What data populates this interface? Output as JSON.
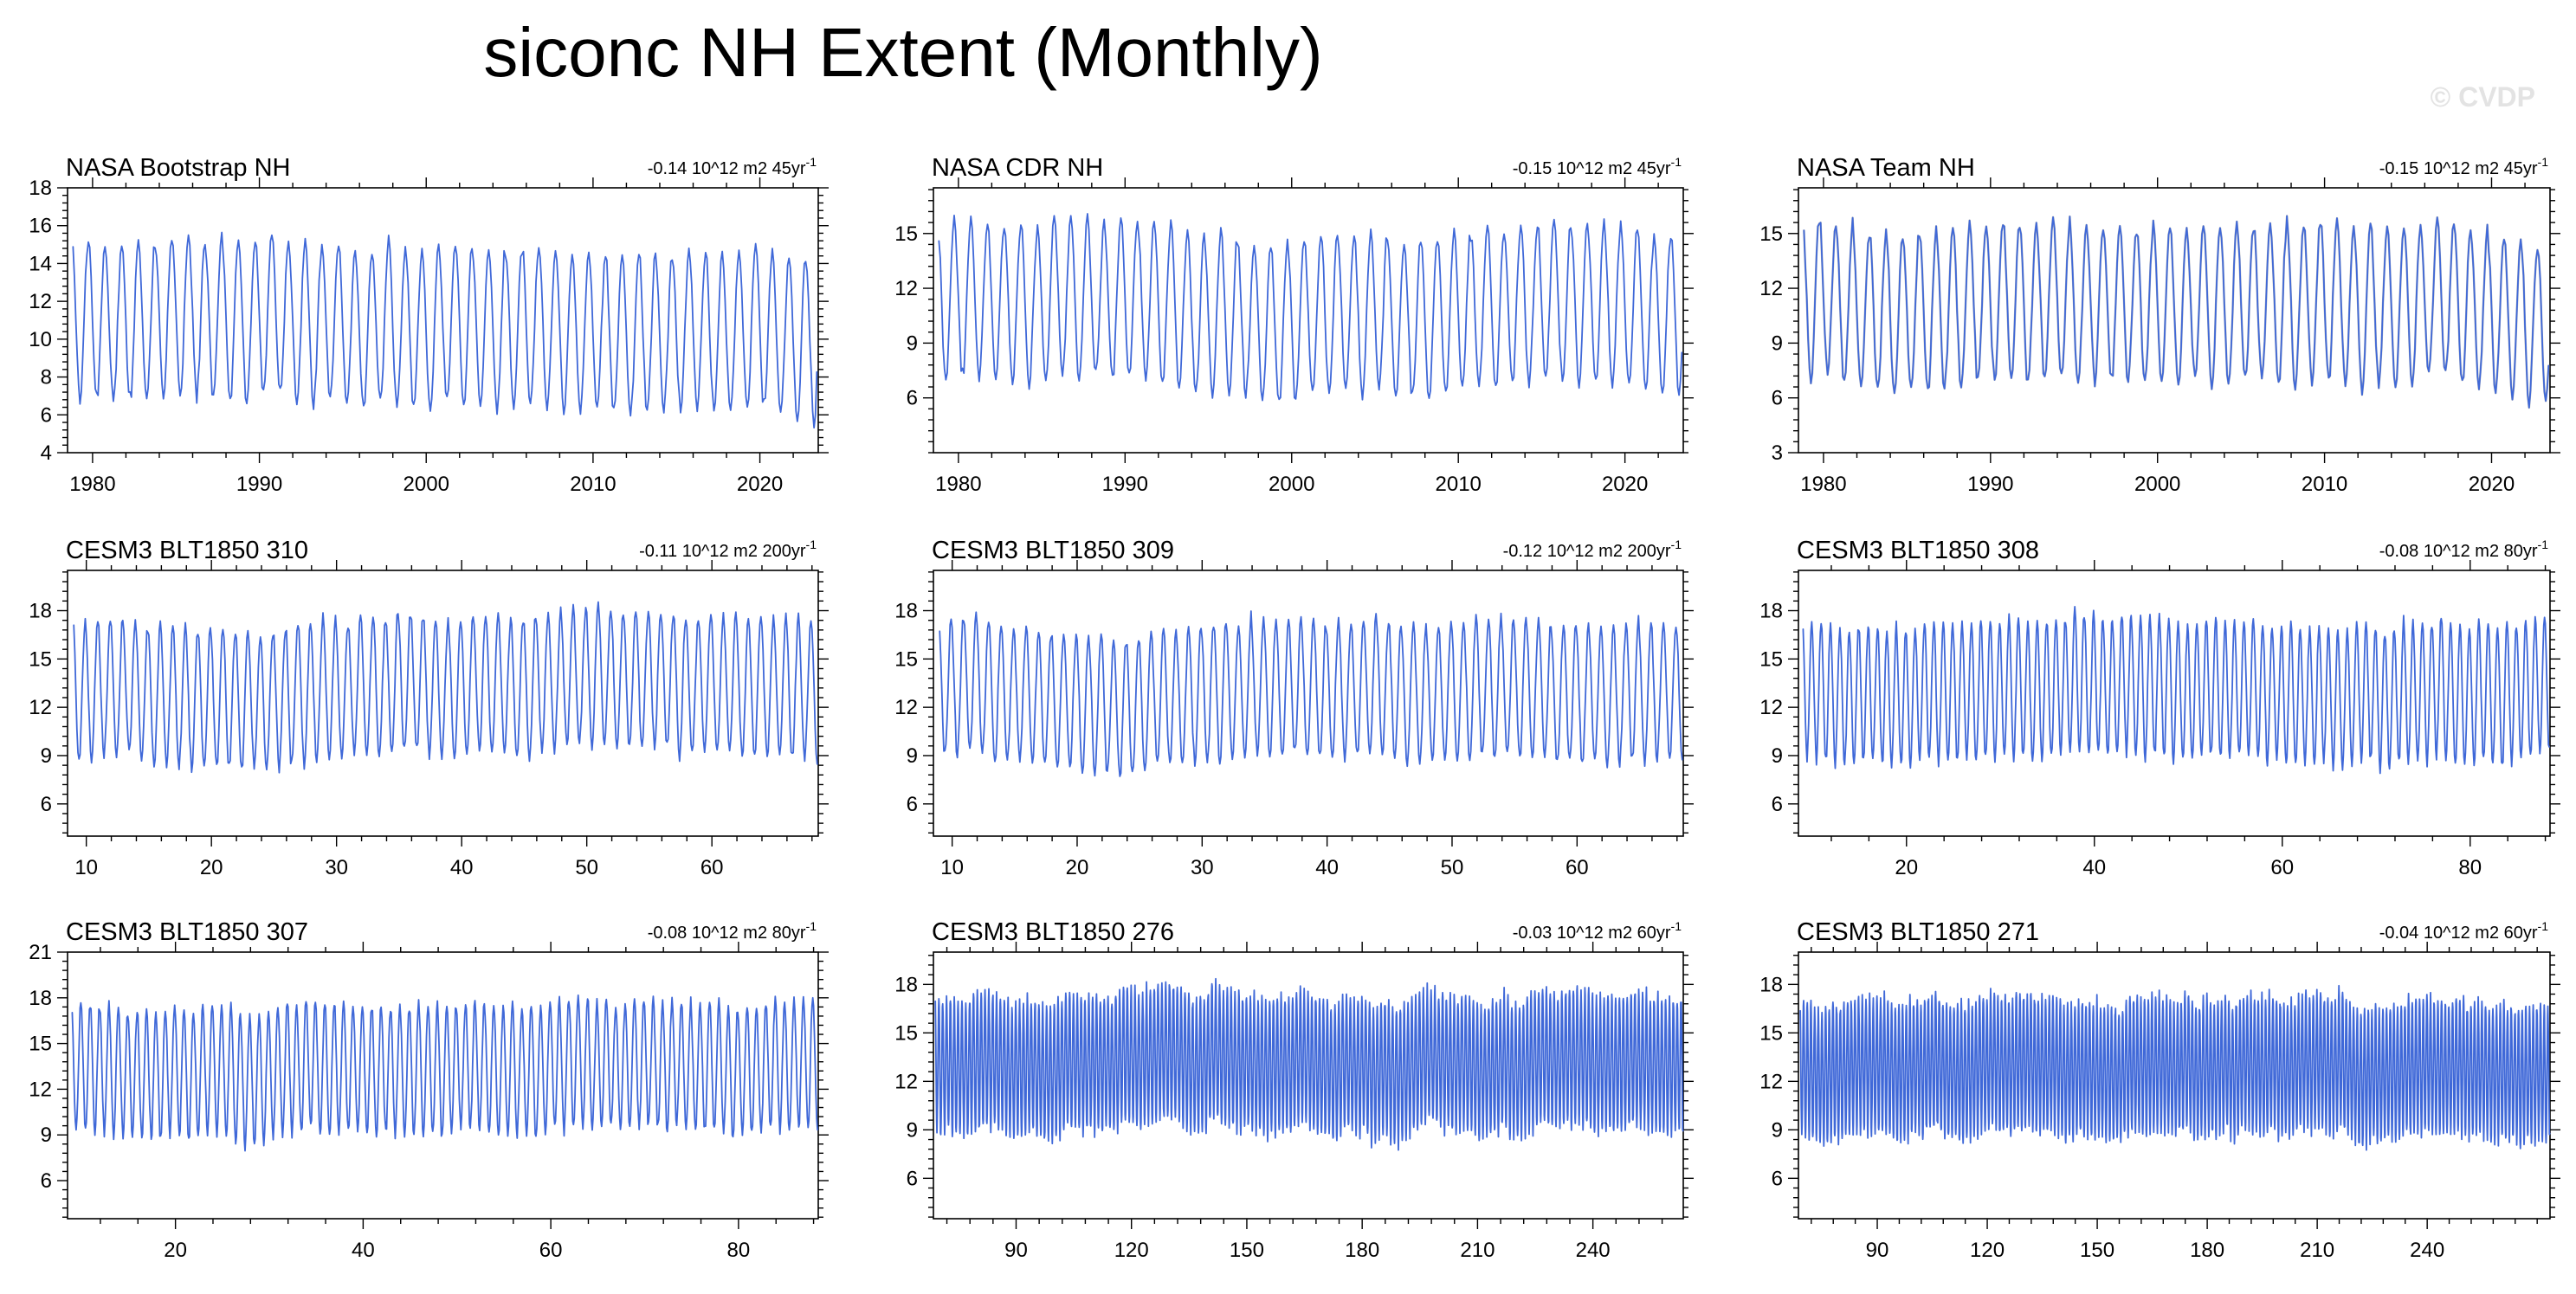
{
  "figure": {
    "title": "siconc NH Extent (Monthly)",
    "watermark": "© CVDP",
    "line_color": "#3f68d8",
    "obs_overlay_color": "#b4b4b4"
  },
  "chart_data": [
    {
      "type": "line",
      "title": "NASA Bootstrap NH",
      "trend": "-0.14 10^12 m2 45yr",
      "trend_sup": "-1",
      "xlabel": "",
      "ylabel": "10^12 m2",
      "xlim": [
        1978.5,
        2023.5
      ],
      "ylim": [
        4,
        18
      ],
      "xticks": [
        1980,
        1990,
        2000,
        2010,
        2020
      ],
      "yticks": [
        4,
        6,
        8,
        10,
        12,
        14,
        16,
        18
      ],
      "series": [
        {
          "name": "NASA Bootstrap NH",
          "x_start": 1978.83,
          "x_end": 2023.4,
          "seasonal_max": 15.4,
          "seasonal_min": 7.0,
          "annual_trend_per_year": -0.014
        }
      ]
    },
    {
      "type": "line",
      "title": "NASA CDR NH",
      "trend": "-0.15 10^12 m2 45yr",
      "trend_sup": "-1",
      "xlabel": "",
      "ylabel": "10^12 m2",
      "xlim": [
        1978.5,
        2023.5
      ],
      "ylim": [
        3,
        17.5
      ],
      "xticks": [
        1980,
        1990,
        2000,
        2010,
        2020
      ],
      "yticks": [
        6,
        9,
        12,
        15
      ],
      "series": [
        {
          "name": "NASA CDR NH",
          "x_start": 1978.83,
          "x_end": 2023.4,
          "seasonal_max": 15.5,
          "seasonal_min": 6.9,
          "annual_trend_per_year": -0.015
        }
      ]
    },
    {
      "type": "line",
      "title": "NASA Team NH",
      "trend": "-0.15 10^12 m2 45yr",
      "trend_sup": "-1",
      "xlabel": "",
      "ylabel": "10^12 m2",
      "xlim": [
        1978.5,
        2023.5
      ],
      "ylim": [
        3,
        17.5
      ],
      "xticks": [
        1980,
        1990,
        2000,
        2010,
        2020
      ],
      "yticks": [
        3,
        6,
        9,
        12,
        15
      ],
      "series": [
        {
          "name": "NASA Team NH",
          "x_start": 1978.83,
          "x_end": 2023.4,
          "seasonal_max": 15.5,
          "seasonal_min": 6.9,
          "annual_trend_per_year": -0.015
        }
      ]
    },
    {
      "type": "line",
      "title": "CESM3 BLT1850 310",
      "trend": "-0.11 10^12 m2 200yr",
      "trend_sup": "-1",
      "xlabel": "",
      "ylabel": "10^12 m2",
      "xlim": [
        8.5,
        68.5
      ],
      "ylim": [
        4,
        20.5
      ],
      "xticks": [
        10,
        20,
        30,
        40,
        50,
        60
      ],
      "yticks": [
        6,
        9,
        12,
        15,
        18
      ],
      "series": [
        {
          "name": "CESM3 BLT1850 310",
          "x_start": 9,
          "x_end": 68.4,
          "seasonal_max": 17.3,
          "seasonal_min": 8.8,
          "annual_trend_per_year": 0
        }
      ]
    },
    {
      "type": "line",
      "title": "CESM3 BLT1850 309",
      "trend": "-0.12 10^12 m2 200yr",
      "trend_sup": "-1",
      "xlabel": "",
      "ylabel": "10^12 m2",
      "xlim": [
        8.5,
        68.5
      ],
      "ylim": [
        4,
        20.5
      ],
      "xticks": [
        10,
        20,
        30,
        40,
        50,
        60
      ],
      "yticks": [
        6,
        9,
        12,
        15,
        18
      ],
      "series": [
        {
          "name": "CESM3 BLT1850 309",
          "x_start": 9,
          "x_end": 68.4,
          "seasonal_max": 17.3,
          "seasonal_min": 8.8,
          "annual_trend_per_year": 0
        }
      ]
    },
    {
      "type": "line",
      "title": "CESM3 BLT1850 308",
      "trend": "-0.08 10^12 m2 80yr",
      "trend_sup": "-1",
      "xlabel": "",
      "ylabel": "10^12 m2",
      "xlim": [
        8.5,
        88.5
      ],
      "ylim": [
        4,
        20.5
      ],
      "xticks": [
        20,
        40,
        60,
        80
      ],
      "yticks": [
        6,
        9,
        12,
        15,
        18
      ],
      "series": [
        {
          "name": "CESM3 BLT1850 308",
          "x_start": 9,
          "x_end": 88.4,
          "seasonal_max": 17.3,
          "seasonal_min": 8.8,
          "annual_trend_per_year": 0
        }
      ]
    },
    {
      "type": "line",
      "title": "CESM3 BLT1850 307",
      "trend": "-0.08 10^12 m2 80yr",
      "trend_sup": "-1",
      "xlabel": "",
      "ylabel": "10^12 m2",
      "xlim": [
        8.5,
        88.5
      ],
      "ylim": [
        3.5,
        21
      ],
      "xticks": [
        20,
        40,
        60,
        80
      ],
      "yticks": [
        6,
        9,
        12,
        15,
        18,
        21
      ],
      "series": [
        {
          "name": "CESM3 BLT1850 307",
          "x_start": 9,
          "x_end": 88.4,
          "seasonal_max": 17.4,
          "seasonal_min": 9.0,
          "annual_trend_per_year": 0
        }
      ]
    },
    {
      "type": "line",
      "title": "CESM3 BLT1850 276",
      "trend": "-0.03 10^12 m2 60yr",
      "trend_sup": "-1",
      "xlabel": "",
      "ylabel": "10^12 m2",
      "xlim": [
        68.5,
        263.5
      ],
      "ylim": [
        3.5,
        20
      ],
      "xticks": [
        90,
        120,
        150,
        180,
        210,
        240
      ],
      "yticks": [
        6,
        9,
        12,
        15,
        18
      ],
      "series": [
        {
          "name": "CESM3 BLT1850 276",
          "x_start": 69,
          "x_end": 263.4,
          "seasonal_max": 17.2,
          "seasonal_min": 8.9,
          "annual_trend_per_year": 0
        }
      ]
    },
    {
      "type": "line",
      "title": "CESM3 BLT1850 271",
      "trend": "-0.04 10^12 m2 60yr",
      "trend_sup": "-1",
      "xlabel": "",
      "ylabel": "10^12 m2",
      "xlim": [
        68.5,
        273.5
      ],
      "ylim": [
        3.5,
        20
      ],
      "xticks": [
        90,
        120,
        150,
        180,
        210,
        240
      ],
      "yticks": [
        6,
        9,
        12,
        15,
        18
      ],
      "series": [
        {
          "name": "CESM3 BLT1850 271",
          "x_start": 69,
          "x_end": 273.4,
          "seasonal_max": 17.2,
          "seasonal_min": 8.9,
          "annual_trend_per_year": 0
        }
      ]
    }
  ]
}
